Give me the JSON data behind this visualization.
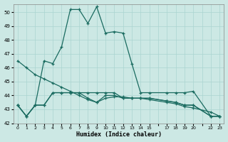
{
  "xlabel": "Humidex (Indice chaleur)",
  "bg_color": "#cce8e4",
  "grid_color": "#aad4d0",
  "line_color": "#1a6b60",
  "xlim": [
    -0.5,
    23.5
  ],
  "ylim": [
    42,
    50.6
  ],
  "yticks": [
    42,
    43,
    44,
    45,
    46,
    47,
    48,
    49,
    50
  ],
  "xtick_labels": [
    "0",
    "1",
    "2",
    "3",
    "4",
    "5",
    "6",
    "7",
    "8",
    "9",
    "10",
    "11",
    "12",
    "13",
    "14",
    "15",
    "",
    "17",
    "18",
    "19",
    "20",
    "",
    "22",
    "23"
  ],
  "xtick_positions": [
    0,
    1,
    2,
    3,
    4,
    5,
    6,
    7,
    8,
    9,
    10,
    11,
    12,
    13,
    14,
    15,
    16,
    17,
    18,
    19,
    20,
    21,
    22,
    23
  ],
  "series1_x": [
    0,
    1,
    2,
    3,
    4,
    5,
    6,
    7,
    8,
    9,
    10,
    11,
    12,
    13,
    14,
    15,
    17,
    18,
    19,
    20,
    22,
    23
  ],
  "series1_y": [
    43.3,
    42.5,
    43.3,
    46.5,
    46.3,
    47.5,
    50.2,
    50.2,
    49.2,
    50.4,
    48.5,
    48.6,
    48.5,
    46.3,
    44.2,
    44.2,
    44.2,
    44.2,
    44.2,
    44.3,
    42.5,
    42.5
  ],
  "series2_x": [
    0,
    1,
    2,
    3,
    4,
    5,
    6,
    7,
    8,
    9,
    10,
    11,
    12,
    13,
    14,
    15,
    17,
    18,
    19,
    20,
    22,
    23
  ],
  "series2_y": [
    46.5,
    46.0,
    45.5,
    45.2,
    44.9,
    44.6,
    44.3,
    44.0,
    43.7,
    43.5,
    43.8,
    43.9,
    43.9,
    43.8,
    43.8,
    43.7,
    43.5,
    43.4,
    43.2,
    43.1,
    42.8,
    42.5
  ],
  "series3_x": [
    0,
    1,
    2,
    3,
    4,
    5,
    6,
    7,
    8,
    9,
    10,
    11,
    12,
    13,
    14,
    15,
    17,
    18,
    19,
    20,
    22,
    23
  ],
  "series3_y": [
    43.3,
    42.5,
    43.3,
    43.3,
    44.2,
    44.2,
    44.2,
    44.2,
    44.2,
    44.2,
    44.2,
    44.2,
    43.8,
    43.8,
    43.8,
    43.8,
    43.6,
    43.5,
    43.3,
    43.3,
    42.5,
    42.5
  ],
  "series4_x": [
    0,
    1,
    2,
    3,
    4,
    5,
    6,
    7,
    8,
    9,
    10,
    11,
    12,
    13,
    14,
    15,
    17,
    18,
    19,
    20,
    22,
    23
  ],
  "series4_y": [
    43.3,
    42.5,
    43.3,
    43.3,
    44.2,
    44.2,
    44.2,
    44.2,
    43.8,
    43.5,
    44.0,
    44.0,
    43.8,
    43.8,
    43.8,
    43.8,
    43.6,
    43.5,
    43.3,
    43.3,
    42.5,
    42.5
  ]
}
